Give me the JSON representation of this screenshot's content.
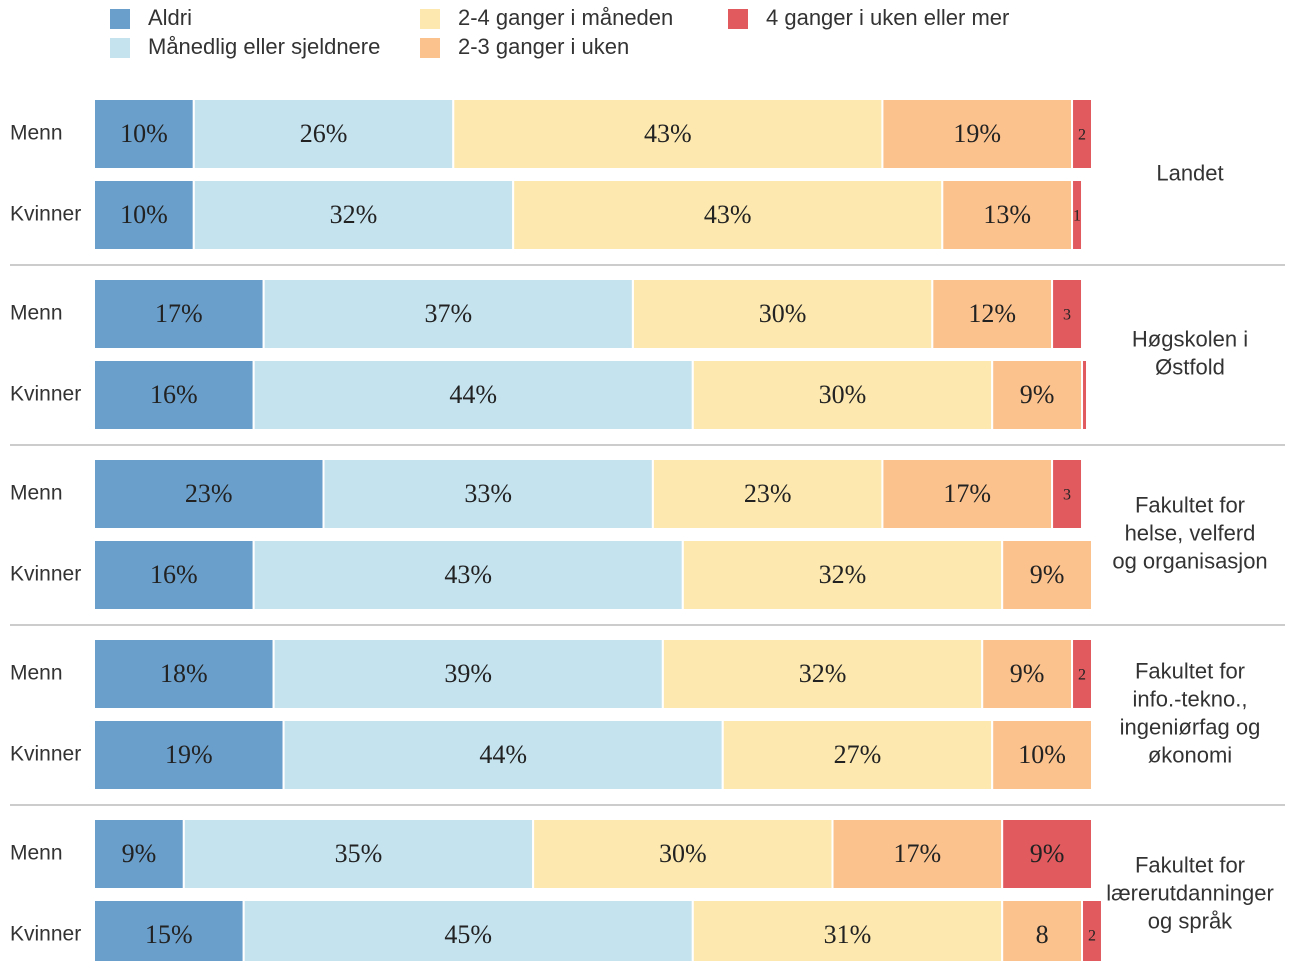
{
  "chart_data": {
    "type": "stacked-bar-horizontal",
    "xlim": [
      0,
      100
    ],
    "categories": [
      "Menn",
      "Kvinner",
      "Menn",
      "Kvinner",
      "Menn",
      "Kvinner",
      "Menn",
      "Kvinner",
      "Menn",
      "Kvinner"
    ],
    "group_labels": [
      [
        "Landet"
      ],
      [
        "Høgskolen i",
        "Østfold"
      ],
      [
        "Fakultet for",
        "helse, velferd",
        "og organisasjon"
      ],
      [
        "Fakultet for",
        "info.-tekno.,",
        "ingeniørfag og",
        "økonomi"
      ],
      [
        "Fakultet for",
        "lærerutdanninger",
        "og språk"
      ]
    ],
    "series": [
      {
        "name": "Aldri",
        "color": "#6b9fcb",
        "values": [
          10,
          10,
          17,
          16,
          23,
          16,
          18,
          19,
          9,
          15
        ],
        "value_labels": [
          "10%",
          "10%",
          "17%",
          "16%",
          "23%",
          "16%",
          "18%",
          "19%",
          "9%",
          "15%"
        ]
      },
      {
        "name": "Månedlig eller sjeldnere",
        "color": "#c5e3ef",
        "values": [
          26,
          32,
          37,
          44,
          33,
          43,
          39,
          44,
          35,
          45
        ],
        "value_labels": [
          "26%",
          "32%",
          "37%",
          "44%",
          "33%",
          "43%",
          "39%",
          "44%",
          "35%",
          "45%"
        ]
      },
      {
        "name": "2-4 ganger i måneden",
        "color": "#fde9b0",
        "values": [
          43,
          43,
          30,
          30,
          23,
          32,
          32,
          27,
          30,
          31
        ],
        "value_labels": [
          "43%",
          "43%",
          "30%",
          "30%",
          "23%",
          "32%",
          "32%",
          "27%",
          "30%",
          "31%"
        ]
      },
      {
        "name": "2-3 ganger i uken",
        "color": "#fbc28e",
        "values": [
          19,
          13,
          12,
          9,
          17,
          9,
          9,
          10,
          17,
          8
        ],
        "value_labels": [
          "19%",
          "13%",
          "12%",
          "9%",
          "17%",
          "9%",
          "9%",
          "10%",
          "17%",
          "8"
        ]
      },
      {
        "name": "4 ganger i uken eller mer",
        "color": "#e05a5e",
        "values": [
          2,
          1,
          3,
          0.5,
          3,
          0,
          2,
          0,
          9,
          2
        ],
        "value_labels": [
          "2",
          "1",
          "3",
          null,
          "3",
          null,
          "2",
          null,
          "9%",
          "2"
        ]
      }
    ]
  }
}
